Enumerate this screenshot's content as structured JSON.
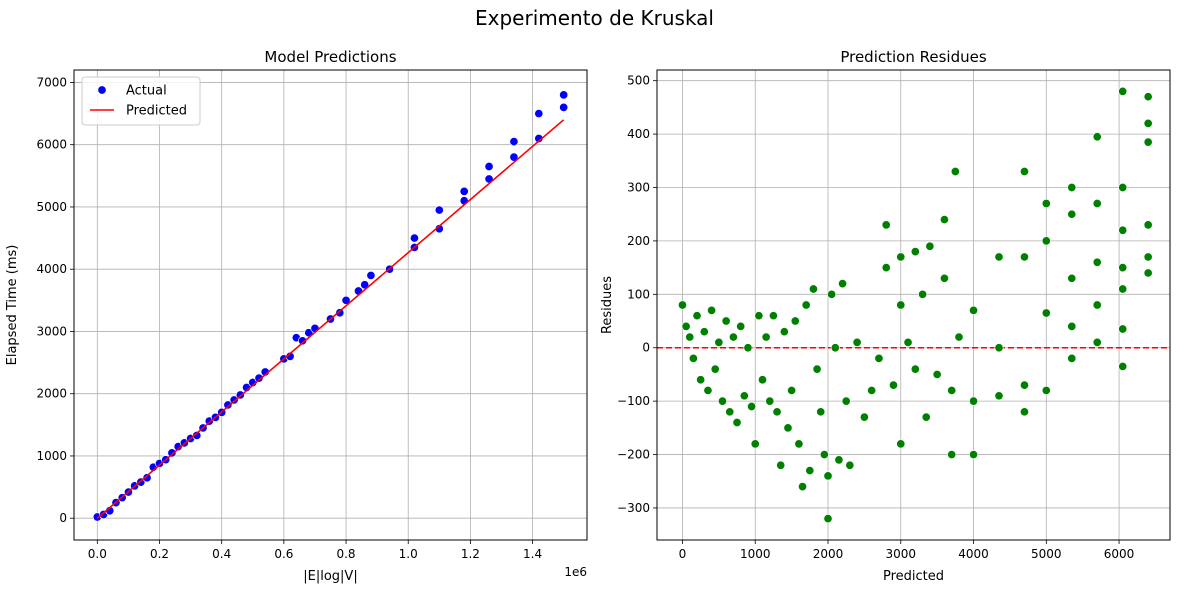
{
  "figure": {
    "suptitle": "Experimento de Kruskal"
  },
  "chart_data": [
    {
      "type": "scatter",
      "title": "Model Predictions",
      "xlabel": "|E|log|V|",
      "ylabel": "Elapsed Time (ms)",
      "x_offset_label": "1e6",
      "xlim": [
        -0.075,
        1.575
      ],
      "ylim": [
        -350,
        7200
      ],
      "xticks": [
        0.0,
        0.2,
        0.4,
        0.6,
        0.8,
        1.0,
        1.2,
        1.4
      ],
      "xtick_labels": [
        "0.0",
        "0.2",
        "0.4",
        "0.6",
        "0.8",
        "1.0",
        "1.2",
        "1.4"
      ],
      "yticks": [
        0,
        1000,
        2000,
        3000,
        4000,
        5000,
        6000,
        7000
      ],
      "ytick_labels": [
        "0",
        "1000",
        "2000",
        "3000",
        "4000",
        "5000",
        "6000",
        "7000"
      ],
      "grid": true,
      "legend": {
        "placement": "upper-left",
        "entries": [
          "Actual",
          "Predicted"
        ]
      },
      "series": [
        {
          "name": "Actual",
          "kind": "scatter",
          "color": "#0000ff",
          "points": [
            [
              0.0,
              20
            ],
            [
              0.02,
              60
            ],
            [
              0.04,
              120
            ],
            [
              0.06,
              250
            ],
            [
              0.08,
              330
            ],
            [
              0.1,
              420
            ],
            [
              0.12,
              520
            ],
            [
              0.14,
              580
            ],
            [
              0.16,
              650
            ],
            [
              0.18,
              820
            ],
            [
              0.2,
              880
            ],
            [
              0.22,
              940
            ],
            [
              0.24,
              1050
            ],
            [
              0.26,
              1150
            ],
            [
              0.28,
              1210
            ],
            [
              0.3,
              1280
            ],
            [
              0.32,
              1330
            ],
            [
              0.34,
              1450
            ],
            [
              0.36,
              1560
            ],
            [
              0.38,
              1620
            ],
            [
              0.4,
              1700
            ],
            [
              0.42,
              1820
            ],
            [
              0.44,
              1900
            ],
            [
              0.46,
              1980
            ],
            [
              0.48,
              2100
            ],
            [
              0.5,
              2180
            ],
            [
              0.52,
              2250
            ],
            [
              0.54,
              2350
            ],
            [
              0.6,
              2560
            ],
            [
              0.62,
              2600
            ],
            [
              0.64,
              2900
            ],
            [
              0.66,
              2850
            ],
            [
              0.68,
              2980
            ],
            [
              0.7,
              3050
            ],
            [
              0.75,
              3200
            ],
            [
              0.78,
              3300
            ],
            [
              0.8,
              3500
            ],
            [
              0.84,
              3650
            ],
            [
              0.86,
              3750
            ],
            [
              0.88,
              3900
            ],
            [
              0.94,
              4000
            ],
            [
              1.02,
              4350
            ],
            [
              1.02,
              4500
            ],
            [
              1.1,
              4650
            ],
            [
              1.1,
              4950
            ],
            [
              1.18,
              5100
            ],
            [
              1.18,
              5250
            ],
            [
              1.26,
              5450
            ],
            [
              1.26,
              5650
            ],
            [
              1.34,
              5800
            ],
            [
              1.34,
              6050
            ],
            [
              1.42,
              6100
            ],
            [
              1.42,
              6500
            ],
            [
              1.5,
              6600
            ],
            [
              1.5,
              6800
            ]
          ]
        },
        {
          "name": "Predicted",
          "kind": "line",
          "color": "#ff0000",
          "points": [
            [
              0.0,
              0
            ],
            [
              1.5,
              6400
            ]
          ]
        }
      ]
    },
    {
      "type": "scatter",
      "title": "Prediction Residues",
      "xlabel": "Predicted",
      "ylabel": "Residues",
      "xlim": [
        -350,
        6700
      ],
      "ylim": [
        -360,
        520
      ],
      "xticks": [
        0,
        1000,
        2000,
        3000,
        4000,
        5000,
        6000
      ],
      "xtick_labels": [
        "0",
        "1000",
        "2000",
        "3000",
        "4000",
        "5000",
        "6000"
      ],
      "yticks": [
        -300,
        -200,
        -100,
        0,
        100,
        200,
        300,
        400,
        500
      ],
      "ytick_labels": [
        "−300",
        "−200",
        "−100",
        "0",
        "100",
        "200",
        "300",
        "400",
        "500"
      ],
      "grid": true,
      "reference_line": {
        "y": 0,
        "color": "#ff0000",
        "style": "dashed"
      },
      "series": [
        {
          "name": "",
          "kind": "scatter",
          "color": "#008000",
          "points": [
            [
              0,
              80
            ],
            [
              50,
              40
            ],
            [
              100,
              20
            ],
            [
              150,
              -20
            ],
            [
              200,
              60
            ],
            [
              250,
              -60
            ],
            [
              300,
              30
            ],
            [
              350,
              -80
            ],
            [
              400,
              70
            ],
            [
              450,
              -40
            ],
            [
              500,
              10
            ],
            [
              550,
              -100
            ],
            [
              600,
              50
            ],
            [
              650,
              -120
            ],
            [
              700,
              20
            ],
            [
              750,
              -140
            ],
            [
              800,
              40
            ],
            [
              850,
              -90
            ],
            [
              900,
              0
            ],
            [
              950,
              -110
            ],
            [
              1000,
              -180
            ],
            [
              1050,
              60
            ],
            [
              1100,
              -60
            ],
            [
              1150,
              20
            ],
            [
              1200,
              -100
            ],
            [
              1250,
              60
            ],
            [
              1300,
              -120
            ],
            [
              1350,
              -220
            ],
            [
              1400,
              30
            ],
            [
              1450,
              -150
            ],
            [
              1500,
              -80
            ],
            [
              1550,
              50
            ],
            [
              1600,
              -180
            ],
            [
              1650,
              -260
            ],
            [
              1700,
              80
            ],
            [
              1750,
              -230
            ],
            [
              1800,
              110
            ],
            [
              1850,
              -40
            ],
            [
              1900,
              -120
            ],
            [
              1950,
              -200
            ],
            [
              2000,
              -320
            ],
            [
              2000,
              -240
            ],
            [
              2050,
              100
            ],
            [
              2100,
              0
            ],
            [
              2150,
              -210
            ],
            [
              2200,
              120
            ],
            [
              2250,
              -100
            ],
            [
              2300,
              -220
            ],
            [
              2400,
              10
            ],
            [
              2500,
              -130
            ],
            [
              2600,
              -80
            ],
            [
              2700,
              -20
            ],
            [
              2800,
              230
            ],
            [
              2800,
              150
            ],
            [
              2900,
              -70
            ],
            [
              3000,
              170
            ],
            [
              3000,
              -180
            ],
            [
              3000,
              80
            ],
            [
              3100,
              10
            ],
            [
              3200,
              180
            ],
            [
              3200,
              -40
            ],
            [
              3300,
              100
            ],
            [
              3350,
              -130
            ],
            [
              3400,
              190
            ],
            [
              3500,
              -50
            ],
            [
              3600,
              240
            ],
            [
              3600,
              130
            ],
            [
              3700,
              -200
            ],
            [
              3700,
              -80
            ],
            [
              3750,
              330
            ],
            [
              3800,
              20
            ],
            [
              4000,
              -200
            ],
            [
              4000,
              -100
            ],
            [
              4000,
              70
            ],
            [
              4350,
              170
            ],
            [
              4350,
              -90
            ],
            [
              4350,
              0
            ],
            [
              4700,
              330
            ],
            [
              4700,
              170
            ],
            [
              4700,
              -120
            ],
            [
              4700,
              -70
            ],
            [
              5000,
              270
            ],
            [
              5000,
              200
            ],
            [
              5000,
              65
            ],
            [
              5000,
              -80
            ],
            [
              5350,
              300
            ],
            [
              5350,
              250
            ],
            [
              5350,
              130
            ],
            [
              5350,
              40
            ],
            [
              5350,
              -20
            ],
            [
              5700,
              395
            ],
            [
              5700,
              270
            ],
            [
              5700,
              160
            ],
            [
              5700,
              80
            ],
            [
              5700,
              10
            ],
            [
              6050,
              480
            ],
            [
              6050,
              300
            ],
            [
              6050,
              220
            ],
            [
              6050,
              150
            ],
            [
              6050,
              110
            ],
            [
              6050,
              35
            ],
            [
              6050,
              -35
            ],
            [
              6400,
              470
            ],
            [
              6400,
              420
            ],
            [
              6400,
              385
            ],
            [
              6400,
              230
            ],
            [
              6400,
              170
            ],
            [
              6400,
              140
            ]
          ]
        }
      ]
    }
  ]
}
